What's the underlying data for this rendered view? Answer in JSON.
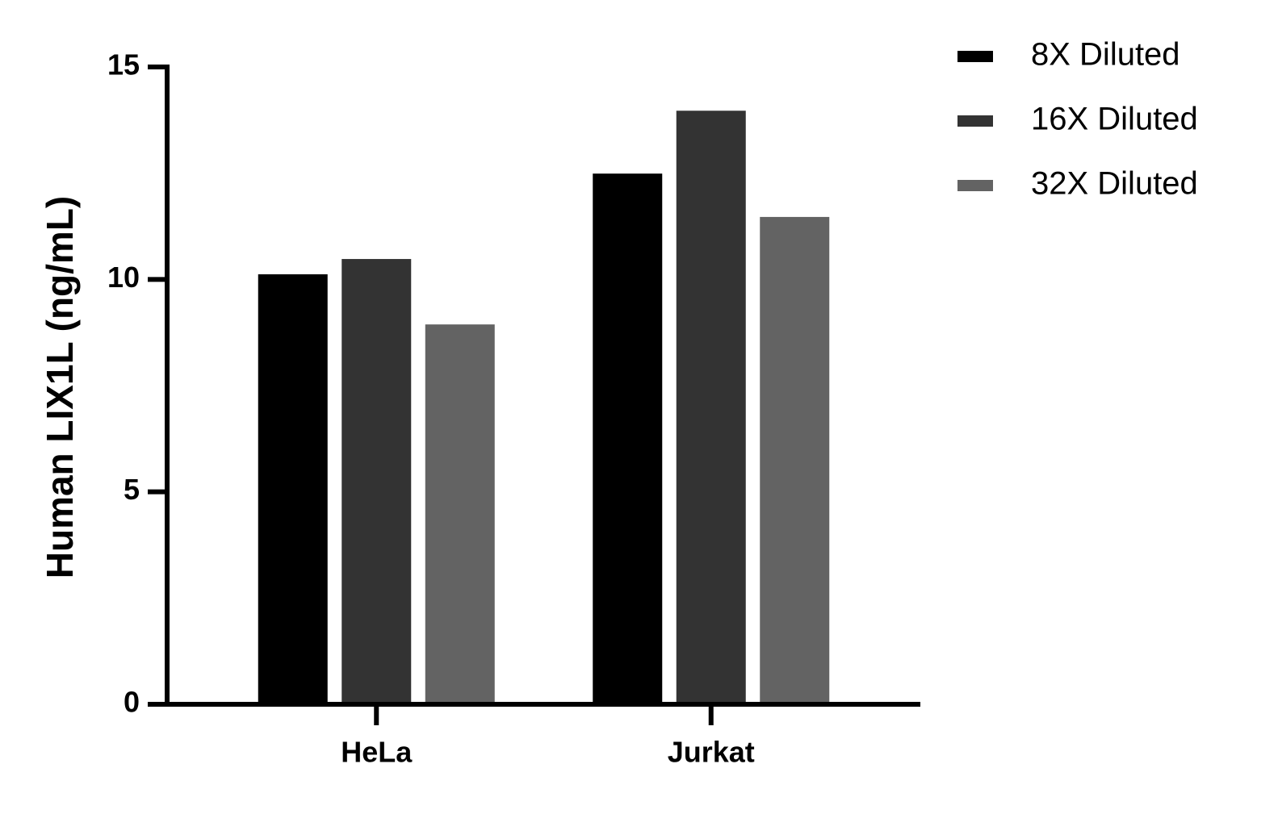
{
  "chart_data": {
    "type": "bar",
    "y_label": "Human LIX1L  (ng/mL)",
    "categories": [
      "HeLa",
      "Jurkat"
    ],
    "series": [
      {
        "name": "8X Diluted",
        "color": "#000000",
        "values": [
          10.12,
          12.49
        ]
      },
      {
        "name": "16X Diluted",
        "color": "#333333",
        "values": [
          10.48,
          13.97
        ]
      },
      {
        "name": "32X Diluted",
        "color": "#636363",
        "values": [
          8.94,
          11.47
        ]
      }
    ],
    "ylim": [
      0,
      15
    ],
    "yticks": [
      0,
      5,
      10,
      15
    ],
    "legend": "top-right"
  }
}
